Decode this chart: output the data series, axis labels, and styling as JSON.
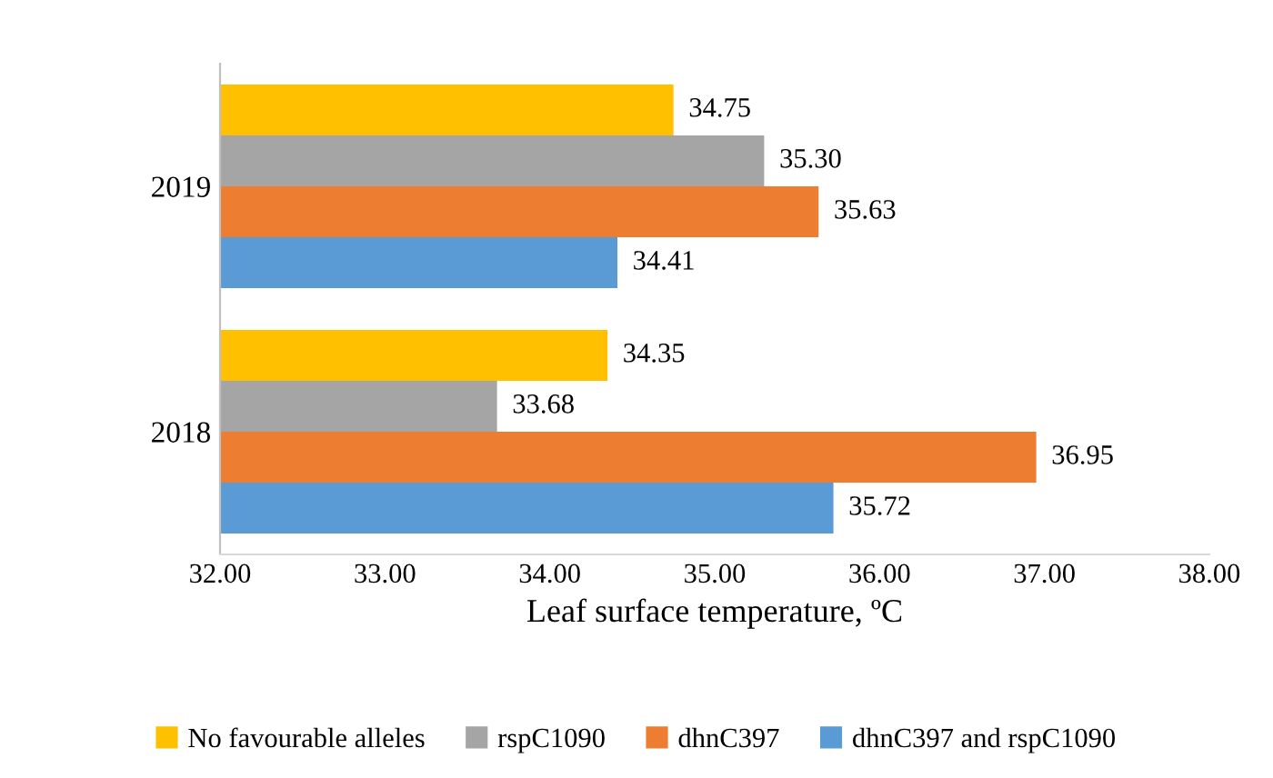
{
  "chart_data": {
    "type": "bar",
    "orientation": "horizontal",
    "xlabel": "Leaf surface temperature, ºC",
    "categories": [
      "2019",
      "2018"
    ],
    "series": [
      {
        "name": "No favourable alleles",
        "color": "#ffc000",
        "values": [
          34.75,
          34.35
        ],
        "value_labels": [
          "34.75",
          "34.35"
        ]
      },
      {
        "name": "rspC1090",
        "color": "#a5a5a5",
        "values": [
          35.3,
          33.68
        ],
        "value_labels": [
          "35.30",
          "33.68"
        ]
      },
      {
        "name": "dhnC397",
        "color": "#ed7d31",
        "values": [
          35.63,
          36.95
        ],
        "value_labels": [
          "35.63",
          "36.95"
        ]
      },
      {
        "name": "dhnC397 and rspC1090",
        "color": "#5b9bd5",
        "values": [
          34.41,
          35.72
        ],
        "value_labels": [
          "34.41",
          "35.72"
        ]
      }
    ],
    "xlim": [
      32,
      38
    ],
    "xticks": [
      {
        "value": 32,
        "label": "32.00"
      },
      {
        "value": 33,
        "label": "33.00"
      },
      {
        "value": 34,
        "label": "34.00"
      },
      {
        "value": 35,
        "label": "35.00"
      },
      {
        "value": 36,
        "label": "36.00"
      },
      {
        "value": 37,
        "label": "37.00"
      },
      {
        "value": 38,
        "label": "38.00"
      }
    ],
    "legend": "bottom",
    "grid": false
  }
}
